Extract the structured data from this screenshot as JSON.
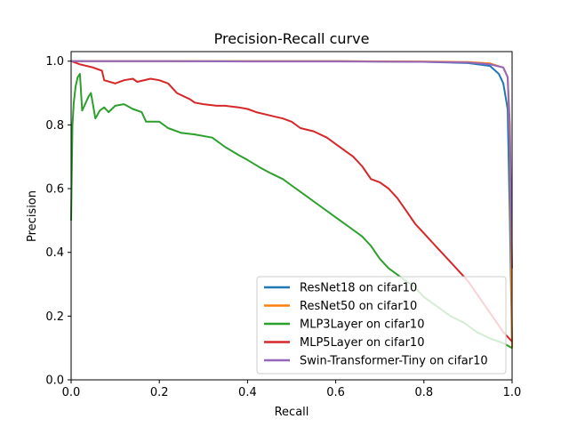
{
  "chart_data": {
    "type": "line",
    "title": "Precision-Recall curve",
    "xlabel": "Recall",
    "ylabel": "Precision",
    "xlim": [
      0,
      1
    ],
    "ylim": [
      0,
      1.03
    ],
    "x_ticks": [
      "0.0",
      "0.2",
      "0.4",
      "0.6",
      "0.8",
      "1.0"
    ],
    "y_ticks": [
      "0.0",
      "0.2",
      "0.4",
      "0.6",
      "0.8",
      "1.0"
    ],
    "grid": false,
    "legend_position": "bottom-right",
    "series": [
      {
        "name": "ResNet18 on cifar10",
        "color": "#1f77b4",
        "points": [
          [
            0,
            1.0
          ],
          [
            0.2,
            1.0
          ],
          [
            0.4,
            1.0
          ],
          [
            0.6,
            1.0
          ],
          [
            0.8,
            0.998
          ],
          [
            0.9,
            0.994
          ],
          [
            0.95,
            0.985
          ],
          [
            0.97,
            0.96
          ],
          [
            0.98,
            0.93
          ],
          [
            0.99,
            0.85
          ],
          [
            0.995,
            0.5
          ],
          [
            1.0,
            0.1
          ]
        ]
      },
      {
        "name": "ResNet50 on cifar10",
        "color": "#ff7f0e",
        "points": [
          [
            0,
            1.0
          ],
          [
            0.2,
            1.0
          ],
          [
            0.4,
            1.0
          ],
          [
            0.6,
            1.0
          ],
          [
            0.8,
            0.999
          ],
          [
            0.9,
            0.997
          ],
          [
            0.95,
            0.993
          ],
          [
            0.98,
            0.98
          ],
          [
            0.99,
            0.95
          ],
          [
            0.995,
            0.75
          ],
          [
            1.0,
            0.1
          ]
        ]
      },
      {
        "name": "MLP3Layer on cifar10",
        "color": "#2ca02c",
        "points": [
          [
            0,
            0.5
          ],
          [
            0.003,
            0.8
          ],
          [
            0.006,
            0.87
          ],
          [
            0.01,
            0.92
          ],
          [
            0.015,
            0.95
          ],
          [
            0.02,
            0.96
          ],
          [
            0.025,
            0.845
          ],
          [
            0.03,
            0.86
          ],
          [
            0.04,
            0.89
          ],
          [
            0.045,
            0.9
          ],
          [
            0.055,
            0.82
          ],
          [
            0.065,
            0.845
          ],
          [
            0.075,
            0.855
          ],
          [
            0.085,
            0.84
          ],
          [
            0.1,
            0.86
          ],
          [
            0.12,
            0.865
          ],
          [
            0.14,
            0.85
          ],
          [
            0.16,
            0.84
          ],
          [
            0.17,
            0.81
          ],
          [
            0.2,
            0.81
          ],
          [
            0.22,
            0.79
          ],
          [
            0.25,
            0.775
          ],
          [
            0.28,
            0.77
          ],
          [
            0.32,
            0.76
          ],
          [
            0.35,
            0.73
          ],
          [
            0.38,
            0.705
          ],
          [
            0.4,
            0.69
          ],
          [
            0.43,
            0.665
          ],
          [
            0.45,
            0.65
          ],
          [
            0.48,
            0.63
          ],
          [
            0.5,
            0.61
          ],
          [
            0.53,
            0.58
          ],
          [
            0.56,
            0.55
          ],
          [
            0.6,
            0.51
          ],
          [
            0.63,
            0.48
          ],
          [
            0.66,
            0.45
          ],
          [
            0.68,
            0.42
          ],
          [
            0.7,
            0.38
          ],
          [
            0.72,
            0.35
          ],
          [
            0.75,
            0.32
          ],
          [
            0.78,
            0.29
          ],
          [
            0.8,
            0.26
          ],
          [
            0.83,
            0.23
          ],
          [
            0.86,
            0.2
          ],
          [
            0.89,
            0.18
          ],
          [
            0.92,
            0.15
          ],
          [
            0.95,
            0.13
          ],
          [
            0.98,
            0.115
          ],
          [
            1.0,
            0.1
          ]
        ]
      },
      {
        "name": "MLP5Layer on cifar10",
        "color": "#d62728",
        "points": [
          [
            0,
            1.0
          ],
          [
            0.02,
            0.99
          ],
          [
            0.05,
            0.98
          ],
          [
            0.07,
            0.97
          ],
          [
            0.075,
            0.94
          ],
          [
            0.1,
            0.93
          ],
          [
            0.12,
            0.94
          ],
          [
            0.14,
            0.945
          ],
          [
            0.15,
            0.935
          ],
          [
            0.18,
            0.945
          ],
          [
            0.2,
            0.94
          ],
          [
            0.22,
            0.93
          ],
          [
            0.24,
            0.9
          ],
          [
            0.27,
            0.88
          ],
          [
            0.28,
            0.87
          ],
          [
            0.3,
            0.865
          ],
          [
            0.33,
            0.86
          ],
          [
            0.35,
            0.86
          ],
          [
            0.38,
            0.855
          ],
          [
            0.4,
            0.85
          ],
          [
            0.42,
            0.84
          ],
          [
            0.45,
            0.83
          ],
          [
            0.48,
            0.82
          ],
          [
            0.5,
            0.81
          ],
          [
            0.52,
            0.79
          ],
          [
            0.55,
            0.78
          ],
          [
            0.58,
            0.76
          ],
          [
            0.6,
            0.74
          ],
          [
            0.62,
            0.72
          ],
          [
            0.64,
            0.7
          ],
          [
            0.66,
            0.67
          ],
          [
            0.68,
            0.63
          ],
          [
            0.7,
            0.62
          ],
          [
            0.72,
            0.6
          ],
          [
            0.74,
            0.57
          ],
          [
            0.76,
            0.53
          ],
          [
            0.78,
            0.49
          ],
          [
            0.8,
            0.46
          ],
          [
            0.82,
            0.43
          ],
          [
            0.84,
            0.4
          ],
          [
            0.86,
            0.37
          ],
          [
            0.88,
            0.34
          ],
          [
            0.9,
            0.31
          ],
          [
            0.92,
            0.27
          ],
          [
            0.94,
            0.23
          ],
          [
            0.96,
            0.19
          ],
          [
            0.98,
            0.15
          ],
          [
            1.0,
            0.12
          ]
        ]
      },
      {
        "name": "Swin-Transformer-Tiny on cifar10",
        "color": "#9467bd",
        "points": [
          [
            0,
            1.0
          ],
          [
            0.2,
            1.0
          ],
          [
            0.4,
            0.999
          ],
          [
            0.6,
            0.999
          ],
          [
            0.8,
            0.998
          ],
          [
            0.9,
            0.996
          ],
          [
            0.95,
            0.99
          ],
          [
            0.98,
            0.98
          ],
          [
            0.99,
            0.95
          ],
          [
            0.995,
            0.8
          ],
          [
            1.0,
            0.35
          ]
        ]
      }
    ]
  }
}
